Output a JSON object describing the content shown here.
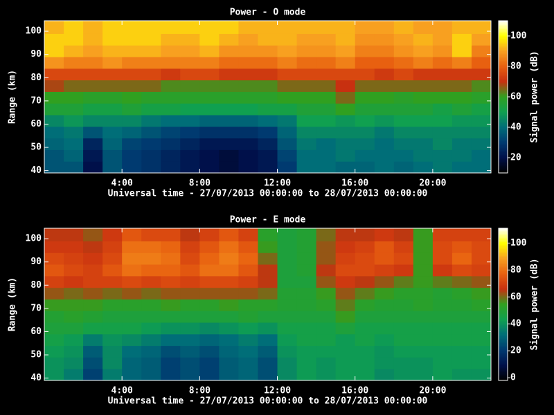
{
  "chart_data": [
    {
      "type": "heatmap",
      "title": "Power - O mode",
      "xlabel": "Universal time - 27/07/2013 00:00:00 to 28/07/2013 00:00:00",
      "ylabel": "Range (km)",
      "colorbar_label": "Signal power (dB)",
      "xbins": [
        0,
        1,
        2,
        3,
        4,
        5,
        6,
        7,
        8,
        9,
        10,
        11,
        12,
        13,
        14,
        15,
        16,
        17,
        18,
        19,
        20,
        21,
        22,
        23
      ],
      "ybins": [
        39,
        44,
        49,
        54,
        59,
        64,
        69,
        74,
        79,
        84,
        89,
        94,
        99,
        104.5
      ],
      "z": [
        [
          35,
          35,
          20,
          35,
          30,
          28,
          25,
          22,
          20,
          18,
          20,
          22,
          30,
          40,
          40,
          38,
          38,
          40,
          38,
          40,
          42,
          40,
          40
        ],
        [
          35,
          38,
          22,
          35,
          30,
          28,
          25,
          22,
          20,
          18,
          20,
          22,
          32,
          40,
          40,
          42,
          40,
          40,
          40,
          42,
          42,
          42,
          40
        ],
        [
          38,
          40,
          25,
          38,
          32,
          30,
          28,
          25,
          22,
          22,
          22,
          25,
          35,
          42,
          40,
          42,
          42,
          40,
          42,
          42,
          45,
          42,
          42
        ],
        [
          40,
          42,
          35,
          40,
          38,
          35,
          32,
          30,
          28,
          28,
          28,
          30,
          38,
          45,
          45,
          45,
          45,
          42,
          45,
          45,
          45,
          45,
          45
        ],
        [
          45,
          48,
          45,
          45,
          45,
          42,
          40,
          40,
          38,
          38,
          38,
          40,
          42,
          50,
          50,
          48,
          50,
          48,
          50,
          50,
          50,
          48,
          48
        ],
        [
          55,
          55,
          52,
          52,
          55,
          52,
          52,
          50,
          50,
          50,
          50,
          52,
          52,
          55,
          55,
          60,
          55,
          55,
          55,
          55,
          52,
          55,
          52
        ],
        [
          60,
          60,
          58,
          58,
          60,
          58,
          58,
          58,
          58,
          58,
          58,
          58,
          60,
          60,
          60,
          65,
          60,
          60,
          58,
          60,
          60,
          60,
          58
        ],
        [
          68,
          65,
          65,
          65,
          65,
          65,
          62,
          62,
          62,
          62,
          62,
          62,
          65,
          65,
          65,
          70,
          65,
          65,
          65,
          65,
          65,
          65,
          62
        ],
        [
          75,
          75,
          75,
          75,
          75,
          75,
          72,
          75,
          75,
          72,
          72,
          72,
          75,
          75,
          75,
          75,
          75,
          72,
          75,
          72,
          72,
          72,
          72
        ],
        [
          88,
          85,
          85,
          88,
          85,
          85,
          85,
          85,
          85,
          82,
          82,
          82,
          85,
          82,
          82,
          85,
          80,
          80,
          82,
          85,
          82,
          85,
          80
        ],
        [
          95,
          92,
          90,
          92,
          92,
          92,
          90,
          90,
          92,
          88,
          88,
          88,
          90,
          88,
          88,
          90,
          85,
          85,
          88,
          90,
          88,
          95,
          85
        ],
        [
          95,
          95,
          92,
          95,
          95,
          95,
          92,
          92,
          95,
          92,
          90,
          92,
          92,
          90,
          90,
          92,
          88,
          88,
          90,
          92,
          90,
          95,
          90
        ],
        [
          92,
          95,
          92,
          95,
          95,
          95,
          95,
          95,
          95,
          95,
          92,
          92,
          92,
          92,
          92,
          92,
          90,
          90,
          92,
          90,
          90,
          92,
          92
        ]
      ],
      "xlim": [
        0,
        23
      ],
      "ylim": [
        39,
        104.5
      ],
      "xticks": [
        {
          "value": 4,
          "label": "4:00"
        },
        {
          "value": 8,
          "label": "8:00"
        },
        {
          "value": 12,
          "label": "12:00"
        },
        {
          "value": 16,
          "label": "16:00"
        },
        {
          "value": 20,
          "label": "20:00"
        }
      ],
      "yticks": [
        40,
        50,
        60,
        70,
        80,
        90,
        100
      ],
      "clim": [
        10,
        110
      ],
      "cticks": [
        20,
        40,
        60,
        80,
        100
      ],
      "colormap": [
        "#000000",
        "#00104a",
        "#003a70",
        "#006e78",
        "#10a050",
        "#30a020",
        "#c83010",
        "#e86010",
        "#f8a020",
        "#ffff00",
        "#ffffff"
      ]
    },
    {
      "type": "heatmap",
      "title": "Power - E mode",
      "xlabel": "Universal time - 27/07/2013 00:00:00 to 28/07/2013 00:00:00",
      "ylabel": "Range (km)",
      "colorbar_label": "Signal power (dB)",
      "xbins": [
        0,
        1,
        2,
        3,
        4,
        5,
        6,
        7,
        8,
        9,
        10,
        11,
        12,
        13,
        14,
        15,
        16,
        17,
        18,
        19,
        20,
        21,
        22,
        23
      ],
      "ybins": [
        39,
        44,
        49,
        54,
        59,
        64,
        69,
        74,
        79,
        84,
        89,
        94,
        99,
        104.5
      ],
      "z": [
        [
          40,
          35,
          22,
          35,
          30,
          28,
          22,
          25,
          22,
          28,
          30,
          25,
          38,
          42,
          40,
          42,
          42,
          38,
          40,
          40,
          42,
          40,
          40
        ],
        [
          40,
          38,
          25,
          38,
          30,
          28,
          22,
          25,
          22,
          28,
          30,
          25,
          38,
          42,
          40,
          42,
          42,
          40,
          40,
          40,
          42,
          42,
          42
        ],
        [
          42,
          40,
          28,
          38,
          32,
          30,
          25,
          28,
          25,
          30,
          32,
          28,
          40,
          42,
          42,
          42,
          42,
          40,
          42,
          42,
          42,
          42,
          42
        ],
        [
          45,
          42,
          35,
          40,
          38,
          35,
          32,
          32,
          30,
          32,
          35,
          32,
          42,
          45,
          45,
          42,
          45,
          42,
          45,
          45,
          45,
          45,
          45
        ],
        [
          48,
          48,
          45,
          45,
          45,
          42,
          40,
          40,
          38,
          40,
          42,
          40,
          45,
          45,
          45,
          48,
          45,
          45,
          45,
          45,
          45,
          45,
          45
        ],
        [
          50,
          52,
          50,
          48,
          48,
          48,
          48,
          48,
          48,
          48,
          50,
          48,
          48,
          48,
          48,
          55,
          48,
          48,
          48,
          48,
          48,
          48,
          48
        ],
        [
          55,
          55,
          55,
          52,
          52,
          52,
          55,
          52,
          52,
          55,
          52,
          52,
          50,
          50,
          52,
          58,
          52,
          50,
          50,
          52,
          50,
          50,
          52
        ],
        [
          62,
          60,
          62,
          60,
          62,
          60,
          62,
          62,
          62,
          62,
          62,
          60,
          50,
          50,
          55,
          62,
          58,
          55,
          52,
          52,
          50,
          52,
          55
        ],
        [
          70,
          68,
          70,
          70,
          72,
          70,
          72,
          70,
          72,
          72,
          70,
          65,
          48,
          48,
          62,
          68,
          65,
          62,
          58,
          55,
          58,
          60,
          62
        ],
        [
          75,
          72,
          70,
          75,
          80,
          78,
          78,
          75,
          80,
          80,
          75,
          65,
          48,
          50,
          65,
          72,
          72,
          70,
          68,
          55,
          68,
          72,
          70
        ],
        [
          72,
          70,
          68,
          72,
          82,
          82,
          80,
          72,
          78,
          82,
          78,
          60,
          48,
          50,
          62,
          70,
          72,
          75,
          72,
          55,
          72,
          78,
          72
        ],
        [
          68,
          68,
          65,
          70,
          80,
          80,
          78,
          70,
          75,
          80,
          75,
          55,
          48,
          50,
          62,
          68,
          70,
          75,
          70,
          55,
          72,
          75,
          72
        ],
        [
          65,
          65,
          62,
          68,
          75,
          72,
          72,
          65,
          70,
          75,
          70,
          52,
          48,
          50,
          60,
          65,
          65,
          68,
          65,
          55,
          70,
          70,
          70
        ]
      ],
      "xlim": [
        0,
        23
      ],
      "ylim": [
        39,
        104.5
      ],
      "xticks": [
        {
          "value": 4,
          "label": "4:00"
        },
        {
          "value": 8,
          "label": "8:00"
        },
        {
          "value": 12,
          "label": "12:00"
        },
        {
          "value": 16,
          "label": "16:00"
        },
        {
          "value": 20,
          "label": "20:00"
        }
      ],
      "yticks": [
        40,
        50,
        60,
        70,
        80,
        90,
        100
      ],
      "clim": [
        -2,
        111
      ],
      "cticks": [
        0,
        20,
        40,
        60,
        80,
        100
      ],
      "colormap": [
        "#000000",
        "#00104a",
        "#003a70",
        "#006e78",
        "#10a050",
        "#30a020",
        "#c83010",
        "#e86010",
        "#f8a020",
        "#ffff00",
        "#ffffff"
      ]
    }
  ]
}
